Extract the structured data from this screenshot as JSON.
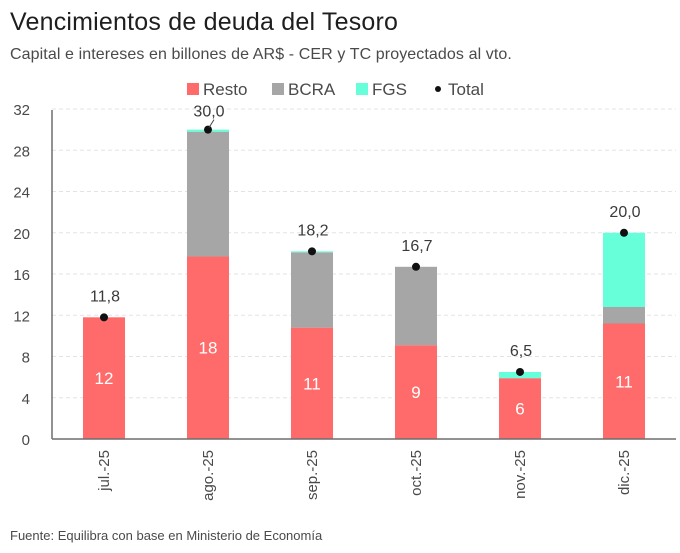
{
  "header": {
    "title": "Vencimientos de deuda del Tesoro",
    "subtitle": "Capital e intereses en billones de AR$ - CER y TC proyectados al vto."
  },
  "footer": {
    "source": "Fuente: Equilibra con base en Ministerio de Economía"
  },
  "chart_data": {
    "type": "bar",
    "stacked": true,
    "title": "Vencimientos de deuda del Tesoro",
    "subtitle": "Capital e intereses en billones de AR$ - CER y TC proyectados al vto.",
    "xlabel": "",
    "ylabel": "",
    "ylim": [
      0,
      32
    ],
    "yticks": [
      0,
      4,
      8,
      12,
      16,
      20,
      24,
      28,
      32
    ],
    "ytick_labels": [
      "0",
      "4",
      "8",
      "12",
      "16",
      "20",
      "24",
      "28",
      "32"
    ],
    "grid": true,
    "legend_position": "top-center",
    "categories": [
      "jul.-25",
      "ago.-25",
      "sep.-25",
      "oct.-25",
      "nov.-25",
      "dic.-25"
    ],
    "series": [
      {
        "name": "Resto",
        "color": "#ff6b6b",
        "values": [
          11.8,
          17.7,
          10.8,
          9.1,
          5.9,
          11.2
        ],
        "labels": [
          "12",
          "18",
          "11",
          "9",
          "6",
          "11"
        ]
      },
      {
        "name": "BCRA",
        "color": "#a6a6a6",
        "values": [
          0,
          12.1,
          7.3,
          7.6,
          0,
          1.6
        ],
        "labels": [
          "",
          "",
          "",
          "",
          "",
          ""
        ]
      },
      {
        "name": "FGS",
        "color": "#66ffd9",
        "values": [
          0,
          0.2,
          0.1,
          0,
          0.6,
          7.2
        ],
        "labels": [
          "",
          "",
          "",
          "",
          "",
          ""
        ]
      }
    ],
    "total": {
      "name": "Total",
      "color": "#111111",
      "values": [
        11.8,
        30.0,
        18.2,
        16.7,
        6.5,
        20.0
      ],
      "labels": [
        "11,8",
        "30,0",
        "18,2",
        "16,7",
        "6,5",
        "20,0"
      ]
    },
    "legend": [
      "Resto",
      "BCRA",
      "FGS",
      "Total"
    ]
  }
}
